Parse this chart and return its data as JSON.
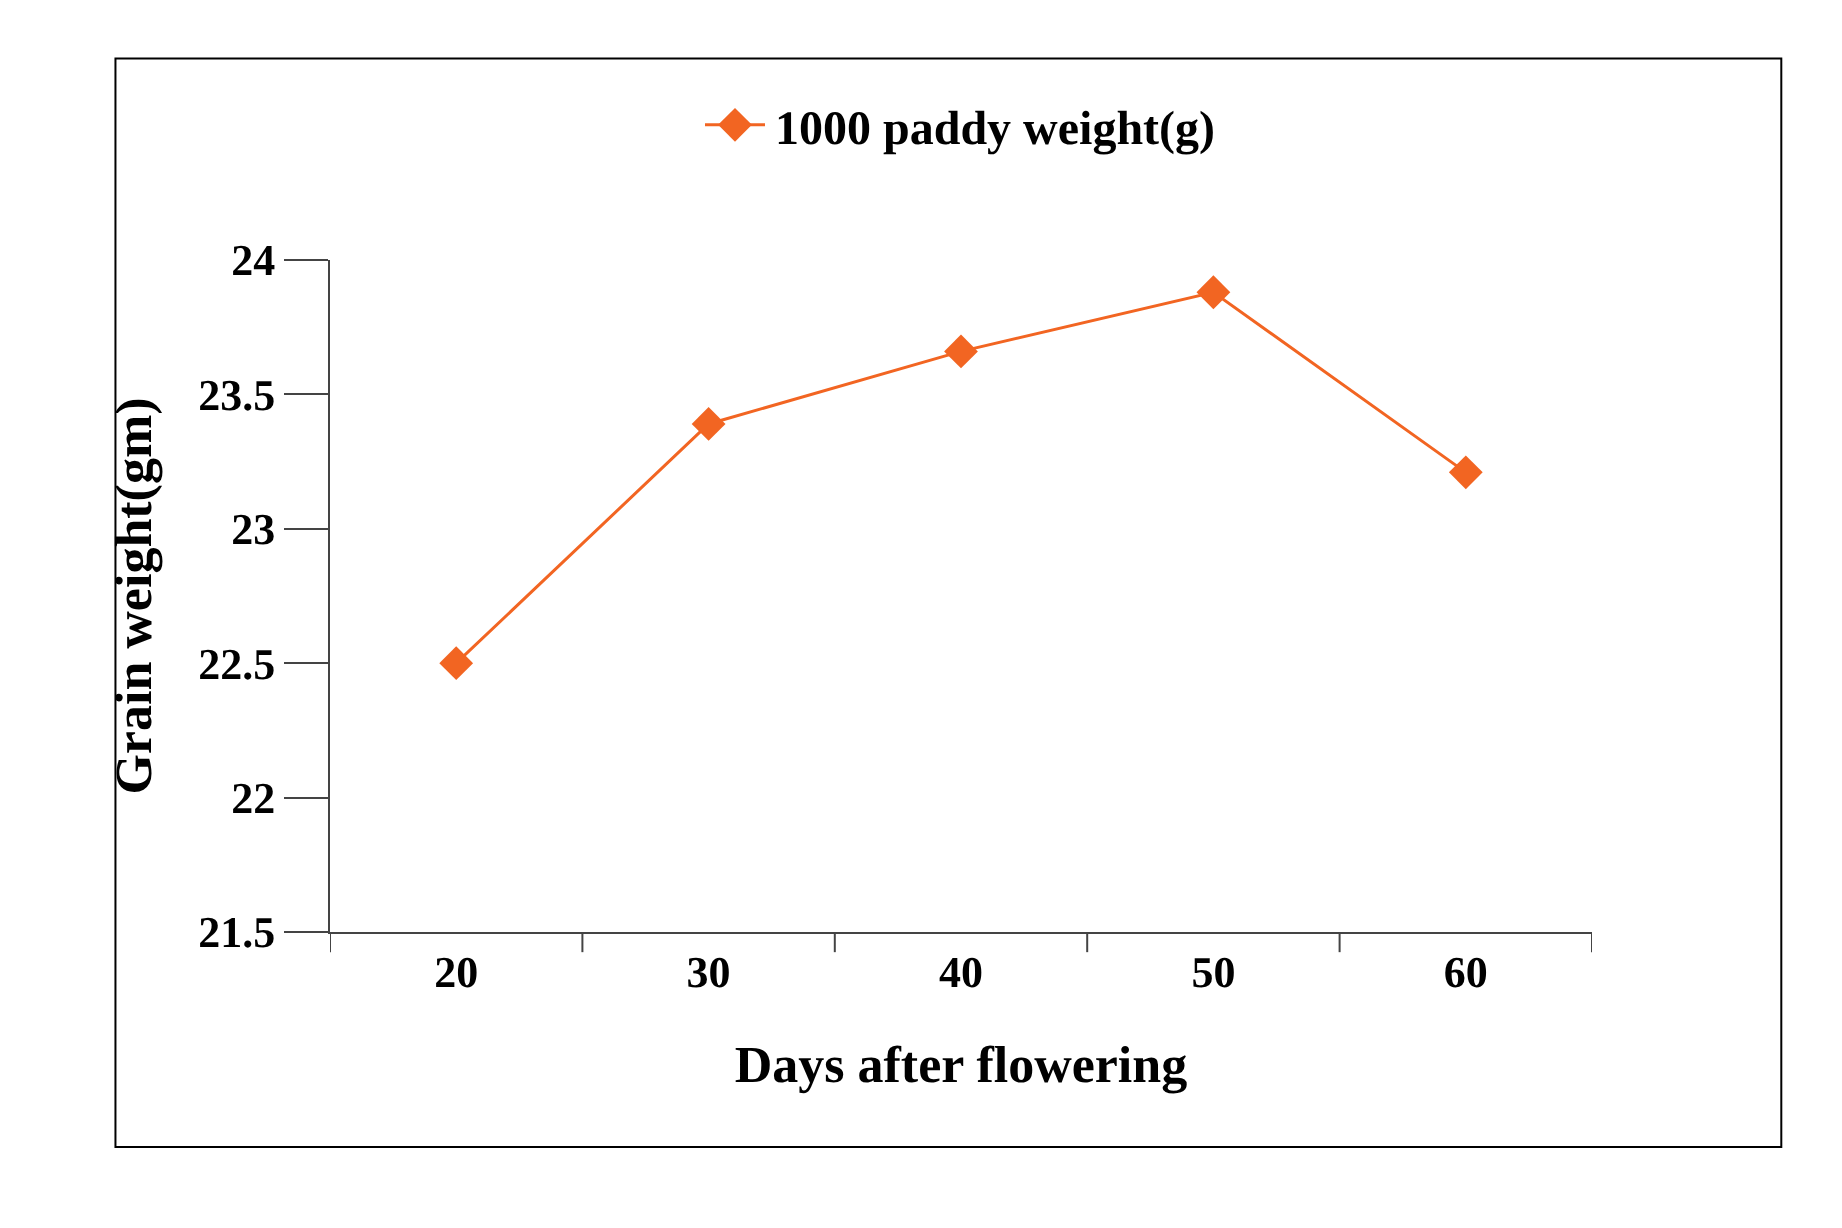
{
  "chart_data": {
    "type": "line",
    "xlabel": "Days after flowering",
    "ylabel": "Grain weight(gm)",
    "categories": [
      "20",
      "30",
      "40",
      "50",
      "60"
    ],
    "series": [
      {
        "name": "1000 paddy weight(g)",
        "color": "#f26522",
        "values": [
          22.5,
          23.39,
          23.66,
          23.88,
          23.21
        ]
      }
    ],
    "ylim": [
      21.5,
      24
    ],
    "yticks": [
      21.5,
      22,
      22.5,
      23,
      23.5,
      24
    ],
    "legend": "top",
    "marker": "diamond",
    "line_style": "solid"
  }
}
